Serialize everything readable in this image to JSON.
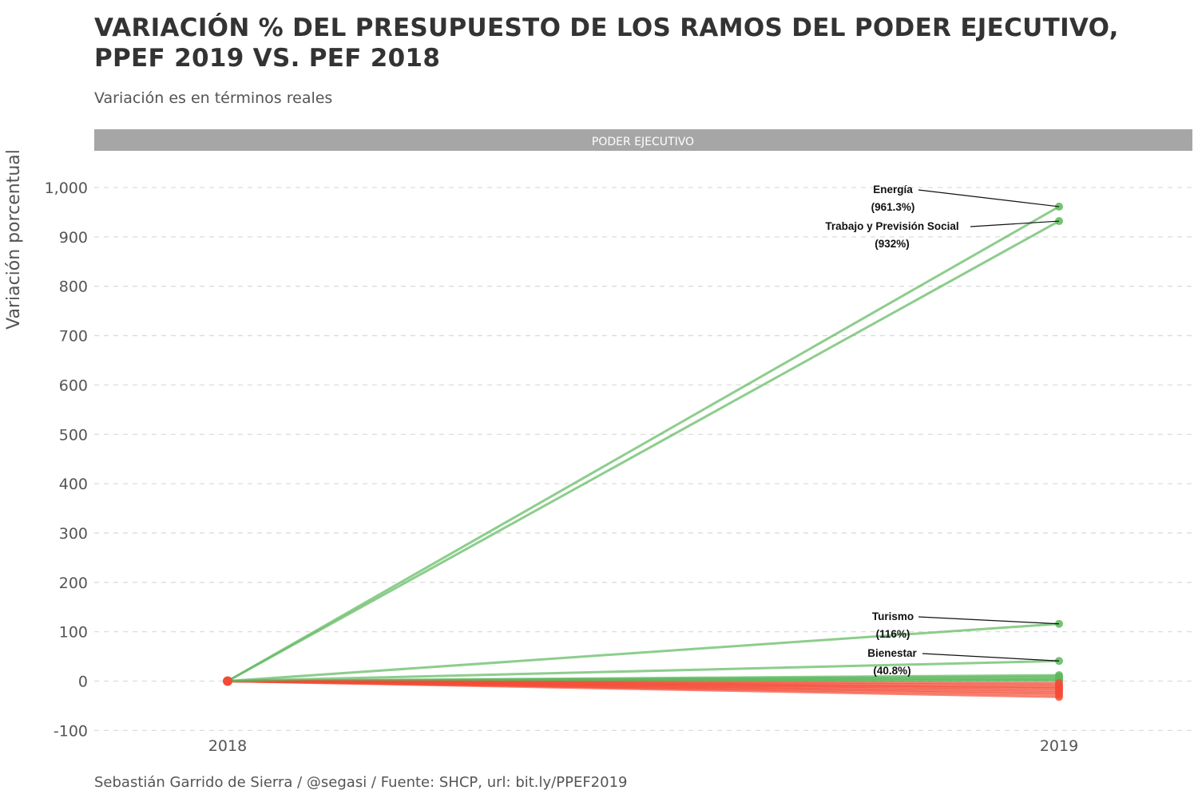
{
  "chart_data": {
    "type": "line",
    "title": "VARIACIÓN % DEL PRESUPUESTO DE LOS RAMOS DEL PODER EJECUTIVO, PPEF 2019 VS. PEF 2018",
    "subtitle": "Variación es en términos reales",
    "caption": "Sebastián Garrido de Sierra / @segasi / Fuente: SHCP, url: bit.ly/PPEF2019",
    "facet_label": "PODER EJECUTIVO",
    "xlabel": "",
    "ylabel": "Variación porcentual",
    "x": [
      "2018",
      "2019"
    ],
    "ylim": [
      -100,
      1000
    ],
    "yticks": [
      -100,
      0,
      100,
      200,
      300,
      400,
      500,
      600,
      700,
      800,
      900,
      1000
    ],
    "ytick_labels": [
      "-100",
      "0",
      "100",
      "200",
      "300",
      "400",
      "500",
      "600",
      "700",
      "800",
      "900",
      "1,000"
    ],
    "grid": "horizontal dashed",
    "colors": {
      "increase": "#5db85c",
      "decrease": "#f44b36"
    },
    "labeled_series": [
      {
        "name": "Energía",
        "values": [
          0,
          961.3
        ],
        "label": "(961.3%)"
      },
      {
        "name": "Trabajo y Previsión Social",
        "values": [
          0,
          932
        ],
        "label": "(932%)"
      },
      {
        "name": "Turismo",
        "values": [
          0,
          116
        ],
        "label": "(116%)"
      },
      {
        "name": "Bienestar",
        "values": [
          0,
          40.8
        ],
        "label": "(40.8%)"
      }
    ],
    "other_series": [
      {
        "values": [
          0,
          12
        ]
      },
      {
        "values": [
          0,
          9
        ]
      },
      {
        "values": [
          0,
          6
        ]
      },
      {
        "values": [
          0,
          3
        ]
      },
      {
        "values": [
          0,
          1
        ]
      },
      {
        "values": [
          0,
          -4
        ]
      },
      {
        "values": [
          0,
          -8
        ]
      },
      {
        "values": [
          0,
          -12
        ]
      },
      {
        "values": [
          0,
          -15
        ]
      },
      {
        "values": [
          0,
          -19
        ]
      },
      {
        "values": [
          0,
          -23
        ]
      },
      {
        "values": [
          0,
          -27
        ]
      },
      {
        "values": [
          0,
          -32
        ]
      }
    ]
  }
}
